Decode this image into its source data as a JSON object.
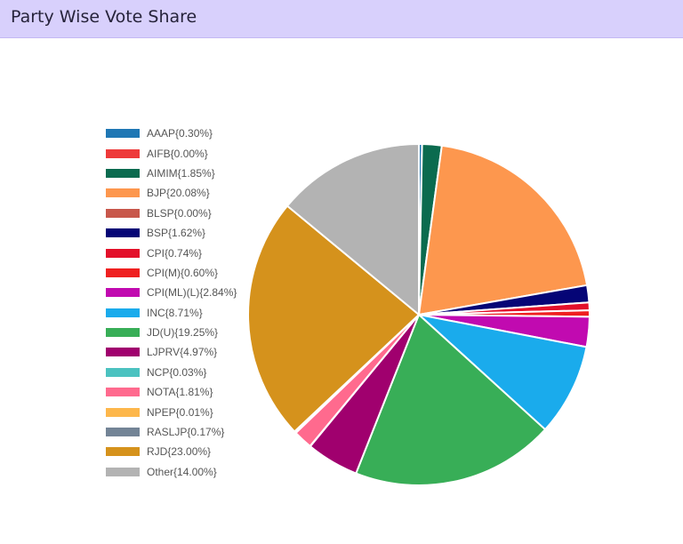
{
  "header": {
    "title": "Party Wise Vote Share"
  },
  "chart_data": {
    "type": "pie",
    "legend_position": "left",
    "slices": [
      {
        "label": "AAAP{0.30%}",
        "name": "AAAP",
        "value": 0.3,
        "color": "#1f77b4"
      },
      {
        "label": "AIFB{0.00%}",
        "name": "AIFB",
        "value": 0.0,
        "color": "#ee3a3a"
      },
      {
        "label": "AIMIM{1.85%}",
        "name": "AIMIM",
        "value": 1.85,
        "color": "#0b6b4f"
      },
      {
        "label": "BJP{20.08%}",
        "name": "BJP",
        "value": 20.08,
        "color": "#fd974e"
      },
      {
        "label": "BLSP{0.00%}",
        "name": "BLSP",
        "value": 0.0,
        "color": "#c8574b"
      },
      {
        "label": "BSP{1.62%}",
        "name": "BSP",
        "value": 1.62,
        "color": "#050576"
      },
      {
        "label": "CPI{0.74%}",
        "name": "CPI",
        "value": 0.74,
        "color": "#e3102a"
      },
      {
        "label": "CPI(M){0.60%}",
        "name": "CPI(M)",
        "value": 0.6,
        "color": "#ef2020"
      },
      {
        "label": "CPI(ML)(L){2.84%}",
        "name": "CPI(ML)(L)",
        "value": 2.84,
        "color": "#c10ab0"
      },
      {
        "label": "INC{8.71%}",
        "name": "INC",
        "value": 8.71,
        "color": "#1aabec"
      },
      {
        "label": "JD(U){19.25%}",
        "name": "JD(U)",
        "value": 19.25,
        "color": "#38ae57"
      },
      {
        "label": "LJPRV{4.97%}",
        "name": "LJPRV",
        "value": 4.97,
        "color": "#a0006e"
      },
      {
        "label": "NCP{0.03%}",
        "name": "NCP",
        "value": 0.03,
        "color": "#4bc2c0"
      },
      {
        "label": "NOTA{1.81%}",
        "name": "NOTA",
        "value": 1.81,
        "color": "#ff6a8e"
      },
      {
        "label": "NPEP{0.01%}",
        "name": "NPEP",
        "value": 0.01,
        "color": "#fdb74b"
      },
      {
        "label": "RASLJP{0.17%}",
        "name": "RASLJP",
        "value": 0.17,
        "color": "#738496"
      },
      {
        "label": "RJD{23.00%}",
        "name": "RJD",
        "value": 23.0,
        "color": "#d5921c"
      },
      {
        "label": "Other{14.00%}",
        "name": "Other",
        "value": 14.0,
        "color": "#b3b3b3"
      }
    ]
  }
}
